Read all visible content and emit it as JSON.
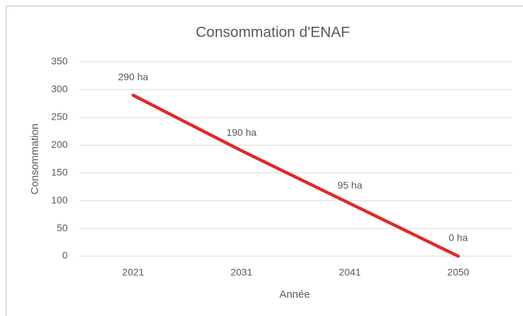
{
  "chart_data": {
    "type": "line",
    "title": "Consommation d'ENAF",
    "x_label": "Année",
    "y_label": "Consommation",
    "categories": [
      "2021",
      "2031",
      "2041",
      "2050"
    ],
    "series": [
      {
        "name": "Consommation",
        "color": "#e0282a",
        "values": [
          290,
          190,
          95,
          0
        ],
        "value_labels": [
          "290 ha",
          "190 ha",
          "95 ha",
          "0 ha"
        ]
      }
    ],
    "ylim": [
      0,
      350
    ],
    "yticks": [
      0,
      50,
      100,
      150,
      200,
      250,
      300,
      350
    ],
    "grid": true
  }
}
